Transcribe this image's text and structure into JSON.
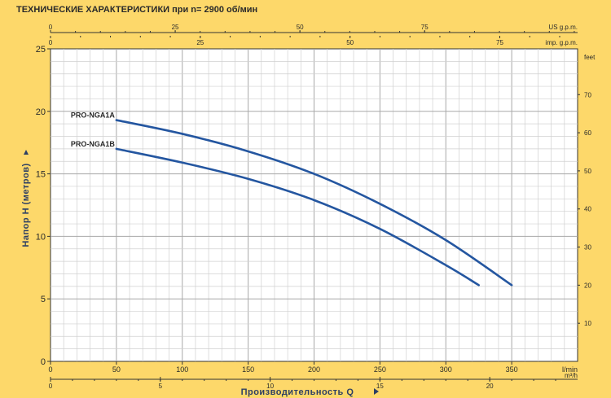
{
  "title": "ТЕХНИЧЕСКИЕ ХАРАКТЕРИСТИКИ при n= 2900 об/мин",
  "chart_data": {
    "type": "line",
    "title": "ТЕХНИЧЕСКИЕ ХАРАКТЕРИСТИКИ при n= 2900 об/мин",
    "xlabel": "Производительность Q",
    "ylabel": "Напор H  (метров)",
    "x_unit": "l/min",
    "xlim": [
      0,
      400
    ],
    "ylim": [
      0,
      25
    ],
    "x_ticks": [
      "0",
      "50",
      "100",
      "150",
      "200",
      "250",
      "300",
      "350",
      "l/min"
    ],
    "y_ticks": [
      "0",
      "5",
      "10",
      "15",
      "20",
      "25"
    ],
    "grid": true,
    "secondary_axes": {
      "bottom_m3h": {
        "unit": "m³/h",
        "ticks": [
          "0",
          "5",
          "10",
          "15",
          "20"
        ],
        "range": [
          0,
          24
        ]
      },
      "right_feet": {
        "unit": "feet",
        "ticks": [
          "10",
          "20",
          "30",
          "40",
          "50",
          "60",
          "70"
        ],
        "range": [
          0,
          82.02
        ]
      },
      "top_us_gpm": {
        "unit": "US g.p.m.",
        "ticks": [
          "0",
          "25",
          "50",
          "75"
        ],
        "range": [
          0,
          105.67
        ]
      },
      "top_imp_gpm": {
        "unit": "imp. g.p.m.",
        "ticks": [
          "0",
          "25",
          "50",
          "75"
        ],
        "range": [
          0,
          87.99
        ]
      }
    },
    "series": [
      {
        "name": "PRO-NGA1A",
        "color": "#2456a0",
        "x": [
          50,
          100,
          150,
          200,
          250,
          300,
          350
        ],
        "y": [
          19.3,
          18.2,
          16.8,
          15.0,
          12.6,
          9.7,
          6.1
        ]
      },
      {
        "name": "PRO-NGA1B",
        "color": "#2456a0",
        "x": [
          50,
          100,
          150,
          200,
          250,
          300,
          325
        ],
        "y": [
          17.0,
          15.9,
          14.6,
          12.9,
          10.6,
          7.7,
          6.1
        ]
      }
    ]
  }
}
